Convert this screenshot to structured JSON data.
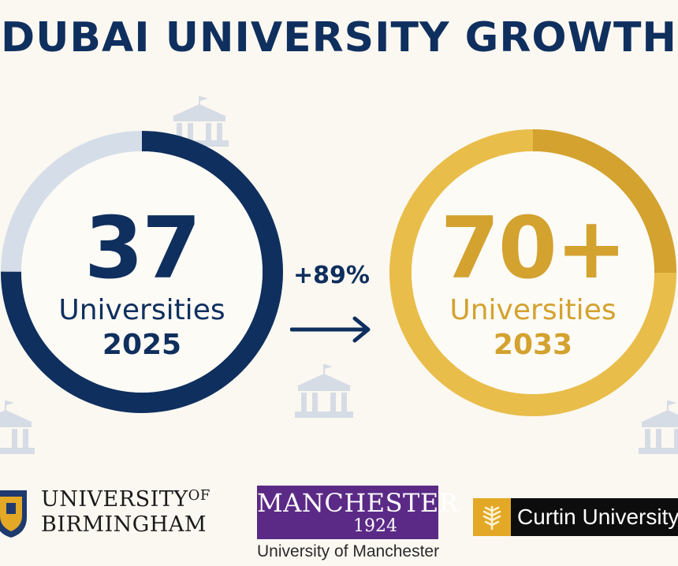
{
  "title": "DUBAI UNIVERSITY GROWTH",
  "colors": {
    "navy": "#0f2f5e",
    "navy_light": "#d5dee8",
    "gold": "#e9bd4a",
    "gold_dark": "#d3a22f",
    "background": "#fbf8f1",
    "icon_gray": "#cfd6e0"
  },
  "left_stat": {
    "value": "37",
    "label": "Universities",
    "year": "2025",
    "ring_fill_fraction": 0.75
  },
  "growth": {
    "text": "+89%"
  },
  "right_stat": {
    "value": "70+",
    "label": "Universities",
    "year": "2033",
    "ring_fill_fraction": 1.0
  },
  "logos": {
    "birmingham": {
      "line1": "UNIVERSITY",
      "of": "OF",
      "line2": "BIRMINGHAM"
    },
    "manchester": {
      "word": "MANCHESTER",
      "year": "1924",
      "subtitle": "University of Manchester"
    },
    "curtin": {
      "text": "Curtin University"
    }
  },
  "icons": [
    "building-icon",
    "building-icon",
    "building-icon",
    "building-icon"
  ]
}
